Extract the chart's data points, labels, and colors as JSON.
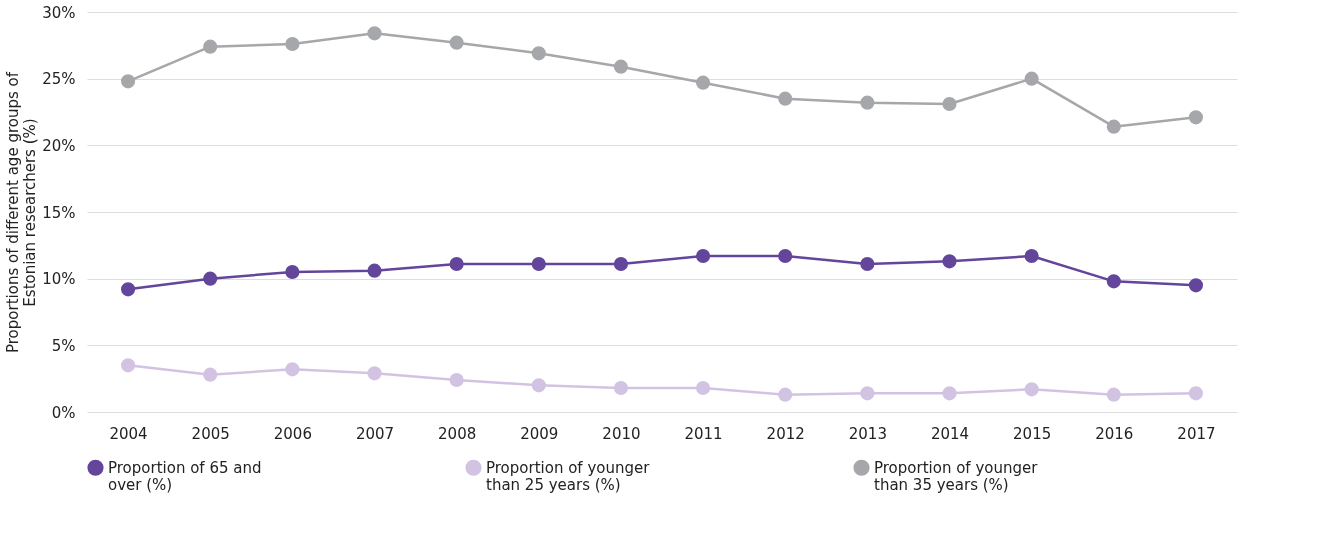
{
  "chart_data": {
    "type": "line",
    "ylabel": "Proportions of different age groups of Estonian researchers (%)",
    "categories": [
      "2004",
      "2005",
      "2006",
      "2007",
      "2008",
      "2009",
      "2010",
      "2011",
      "2012",
      "2013",
      "2014",
      "2015",
      "2016",
      "2017"
    ],
    "series": [
      {
        "name": "Proportion of 65 and over (%)",
        "color": "#63459b",
        "values": [
          9.2,
          10.0,
          10.5,
          10.6,
          11.1,
          11.1,
          11.1,
          11.7,
          11.7,
          11.1,
          11.3,
          11.7,
          9.8,
          9.5
        ]
      },
      {
        "name": "Proportion of younger than 25 years (%)",
        "color": "#d3c3e3",
        "values": [
          3.5,
          2.8,
          3.2,
          2.9,
          2.4,
          2.0,
          1.8,
          1.8,
          1.3,
          1.4,
          1.4,
          1.7,
          1.3,
          1.4
        ]
      },
      {
        "name": "Proportion of younger than 35 years (%)",
        "color": "#a6a7aa",
        "values": [
          24.8,
          27.4,
          27.6,
          28.4,
          27.7,
          26.9,
          25.9,
          24.7,
          23.5,
          23.2,
          23.1,
          25.0,
          21.4,
          22.1
        ]
      }
    ],
    "ylim": [
      0,
      30
    ],
    "yticks": [
      {
        "value": 0,
        "label": "0%"
      },
      {
        "value": 5,
        "label": "5%"
      },
      {
        "value": 10,
        "label": "10%"
      },
      {
        "value": 15,
        "label": "15%"
      },
      {
        "value": 20,
        "label": "20%"
      },
      {
        "value": 25,
        "label": "25%"
      },
      {
        "value": 30,
        "label": "30%"
      }
    ],
    "grid": "y",
    "legend": "bottom",
    "marker": "circle",
    "line_style": "solid"
  }
}
